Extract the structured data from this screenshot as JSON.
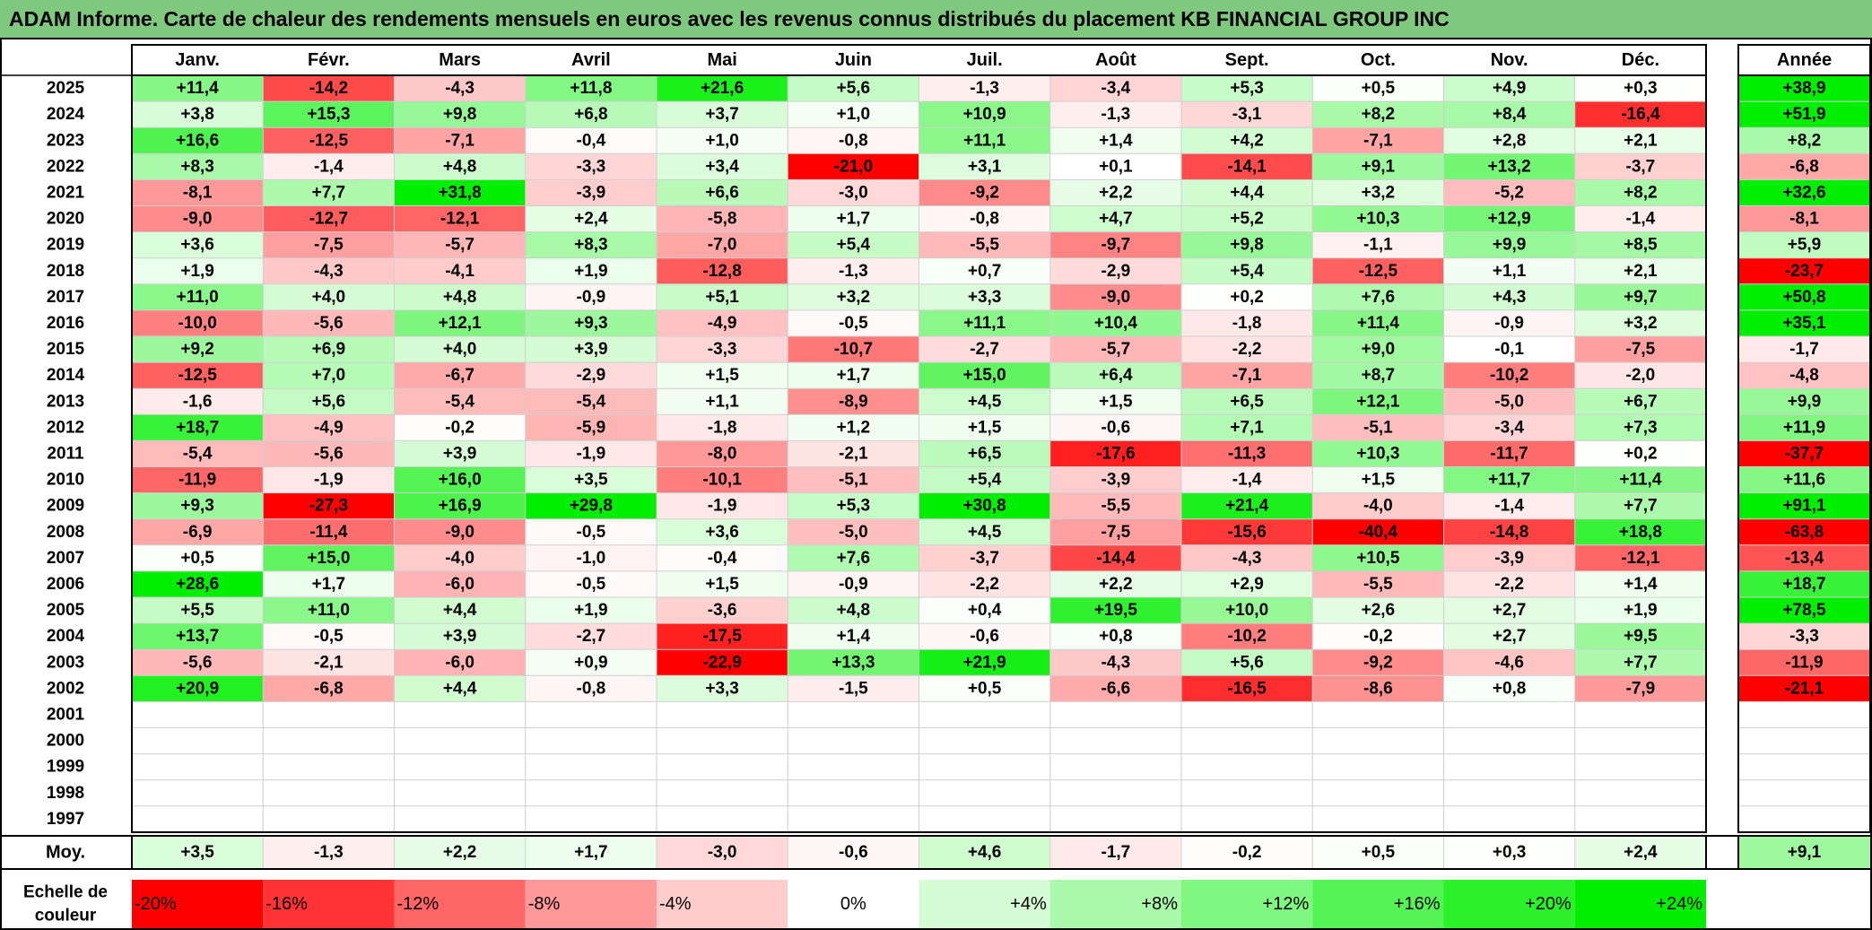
{
  "title": "ADAM Informe. Carte de chaleur des rendements mensuels en euros avec les revenus connus distribués du placement KB FINANCIAL GROUP INC",
  "chart_data": {
    "type": "heatmap",
    "title": "ADAM Informe. Carte de chaleur des rendements mensuels en euros avec les revenus connus distribués du placement KB FINANCIAL GROUP INC",
    "columns": [
      "Janv.",
      "Févr.",
      "Mars",
      "Avril",
      "Mai",
      "Juin",
      "Juil.",
      "Août",
      "Sept.",
      "Oct.",
      "Nov.",
      "Déc."
    ],
    "year_column_label": "Année",
    "rows": [
      {
        "year": "2025",
        "values": [
          "+11,4",
          "-14,2",
          "-4,3",
          "+11,8",
          "+21,6",
          "+5,6",
          "-1,3",
          "-3,4",
          "+5,3",
          "+0,5",
          "+4,9",
          "+0,3"
        ],
        "annual": "+38,9"
      },
      {
        "year": "2024",
        "values": [
          "+3,8",
          "+15,3",
          "+9,8",
          "+6,8",
          "+3,7",
          "+1,0",
          "+10,9",
          "-1,3",
          "-3,1",
          "+8,2",
          "+8,4",
          "-16,4"
        ],
        "annual": "+51,9"
      },
      {
        "year": "2023",
        "values": [
          "+16,6",
          "-12,5",
          "-7,1",
          "-0,4",
          "+1,0",
          "-0,8",
          "+11,1",
          "+1,4",
          "+4,2",
          "-7,1",
          "+2,8",
          "+2,1"
        ],
        "annual": "+8,2"
      },
      {
        "year": "2022",
        "values": [
          "+8,3",
          "-1,4",
          "+4,8",
          "-3,3",
          "+3,4",
          "-21,0",
          "+3,1",
          "+0,1",
          "-14,1",
          "+9,1",
          "+13,2",
          "-3,7"
        ],
        "annual": "-6,8"
      },
      {
        "year": "2021",
        "values": [
          "-8,1",
          "+7,7",
          "+31,8",
          "-3,9",
          "+6,6",
          "-3,0",
          "-9,2",
          "+2,2",
          "+4,4",
          "+3,2",
          "-5,2",
          "+8,2"
        ],
        "annual": "+32,6"
      },
      {
        "year": "2020",
        "values": [
          "-9,0",
          "-12,7",
          "-12,1",
          "+2,4",
          "-5,8",
          "+1,7",
          "-0,8",
          "+4,7",
          "+5,2",
          "+10,3",
          "+12,9",
          "-1,4"
        ],
        "annual": "-8,1"
      },
      {
        "year": "2019",
        "values": [
          "+3,6",
          "-7,5",
          "-5,7",
          "+8,3",
          "-7,0",
          "+5,4",
          "-5,5",
          "-9,7",
          "+9,8",
          "-1,1",
          "+9,9",
          "+8,5"
        ],
        "annual": "+5,9"
      },
      {
        "year": "2018",
        "values": [
          "+1,9",
          "-4,3",
          "-4,1",
          "+1,9",
          "-12,8",
          "-1,3",
          "+0,7",
          "-2,9",
          "+5,4",
          "-12,5",
          "+1,1",
          "+2,1"
        ],
        "annual": "-23,7"
      },
      {
        "year": "2017",
        "values": [
          "+11,0",
          "+4,0",
          "+4,8",
          "-0,9",
          "+5,1",
          "+3,2",
          "+3,3",
          "-9,0",
          "+0,2",
          "+7,6",
          "+4,3",
          "+9,7"
        ],
        "annual": "+50,8"
      },
      {
        "year": "2016",
        "values": [
          "-10,0",
          "-5,6",
          "+12,1",
          "+9,3",
          "-4,9",
          "-0,5",
          "+11,1",
          "+10,4",
          "-1,8",
          "+11,4",
          "-0,9",
          "+3,2"
        ],
        "annual": "+35,1"
      },
      {
        "year": "2015",
        "values": [
          "+9,2",
          "+6,9",
          "+4,0",
          "+3,9",
          "-3,3",
          "-10,7",
          "-2,7",
          "-5,7",
          "-2,2",
          "+9,0",
          "-0,1",
          "-7,5"
        ],
        "annual": "-1,7"
      },
      {
        "year": "2014",
        "values": [
          "-12,5",
          "+7,0",
          "-6,7",
          "-2,9",
          "+1,5",
          "+1,7",
          "+15,0",
          "+6,4",
          "-7,1",
          "+8,7",
          "-10,2",
          "-2,0"
        ],
        "annual": "-4,8"
      },
      {
        "year": "2013",
        "values": [
          "-1,6",
          "+5,6",
          "-5,4",
          "-5,4",
          "+1,1",
          "-8,9",
          "+4,5",
          "+1,5",
          "+6,5",
          "+12,1",
          "-5,0",
          "+6,7"
        ],
        "annual": "+9,9"
      },
      {
        "year": "2012",
        "values": [
          "+18,7",
          "-4,9",
          "-0,2",
          "-5,9",
          "-1,8",
          "+1,2",
          "+1,5",
          "-0,6",
          "+7,1",
          "-5,1",
          "-3,4",
          "+7,3"
        ],
        "annual": "+11,9"
      },
      {
        "year": "2011",
        "values": [
          "-5,4",
          "-5,6",
          "+3,9",
          "-1,9",
          "-8,0",
          "-2,1",
          "+6,5",
          "-17,6",
          "-11,3",
          "+10,3",
          "-11,7",
          "+0,2"
        ],
        "annual": "-37,7"
      },
      {
        "year": "2010",
        "values": [
          "-11,9",
          "-1,9",
          "+16,0",
          "+3,5",
          "-10,1",
          "-5,1",
          "+5,4",
          "-3,9",
          "-1,4",
          "+1,5",
          "+11,7",
          "+11,4"
        ],
        "annual": "+11,6"
      },
      {
        "year": "2009",
        "values": [
          "+9,3",
          "-27,3",
          "+16,9",
          "+29,8",
          "-1,9",
          "+5,3",
          "+30,8",
          "-5,5",
          "+21,4",
          "-4,0",
          "-1,4",
          "+7,7"
        ],
        "annual": "+91,1"
      },
      {
        "year": "2008",
        "values": [
          "-6,9",
          "-11,4",
          "-9,0",
          "-0,5",
          "+3,6",
          "-5,0",
          "+4,5",
          "-7,5",
          "-15,6",
          "-40,4",
          "-14,8",
          "+18,8"
        ],
        "annual": "-63,8"
      },
      {
        "year": "2007",
        "values": [
          "+0,5",
          "+15,0",
          "-4,0",
          "-1,0",
          "-0,4",
          "+7,6",
          "-3,7",
          "-14,4",
          "-4,3",
          "+10,5",
          "-3,9",
          "-12,1"
        ],
        "annual": "-13,4"
      },
      {
        "year": "2006",
        "values": [
          "+28,6",
          "+1,7",
          "-6,0",
          "-0,5",
          "+1,5",
          "-0,9",
          "-2,2",
          "+2,2",
          "+2,9",
          "-5,5",
          "-2,2",
          "+1,4"
        ],
        "annual": "+18,7"
      },
      {
        "year": "2005",
        "values": [
          "+5,5",
          "+11,0",
          "+4,4",
          "+1,9",
          "-3,6",
          "+4,8",
          "+0,4",
          "+19,5",
          "+10,0",
          "+2,6",
          "+2,7",
          "+1,9"
        ],
        "annual": "+78,5"
      },
      {
        "year": "2004",
        "values": [
          "+13,7",
          "-0,5",
          "+3,9",
          "-2,7",
          "-17,5",
          "+1,4",
          "-0,6",
          "+0,8",
          "-10,2",
          "-0,2",
          "+2,7",
          "+9,5"
        ],
        "annual": "-3,3"
      },
      {
        "year": "2003",
        "values": [
          "-5,6",
          "-2,1",
          "-6,0",
          "+0,9",
          "-22,9",
          "+13,3",
          "+21,9",
          "-4,3",
          "+5,6",
          "-9,2",
          "-4,6",
          "+7,7"
        ],
        "annual": "-11,9"
      },
      {
        "year": "2002",
        "values": [
          "+20,9",
          "-6,8",
          "+4,4",
          "-0,8",
          "+3,3",
          "-1,5",
          "+0,5",
          "-6,6",
          "-16,5",
          "-8,6",
          "+0,8",
          "-7,9"
        ],
        "annual": "-21,1"
      },
      {
        "year": "2001",
        "values": [
          "",
          "",
          "",
          "",
          "",
          "",
          "",
          "",
          "",
          "",
          "",
          ""
        ],
        "annual": ""
      },
      {
        "year": "2000",
        "values": [
          "",
          "",
          "",
          "",
          "",
          "",
          "",
          "",
          "",
          "",
          "",
          ""
        ],
        "annual": ""
      },
      {
        "year": "1999",
        "values": [
          "",
          "",
          "",
          "",
          "",
          "",
          "",
          "",
          "",
          "",
          "",
          ""
        ],
        "annual": ""
      },
      {
        "year": "1998",
        "values": [
          "",
          "",
          "",
          "",
          "",
          "",
          "",
          "",
          "",
          "",
          "",
          ""
        ],
        "annual": ""
      },
      {
        "year": "1997",
        "values": [
          "",
          "",
          "",
          "",
          "",
          "",
          "",
          "",
          "",
          "",
          "",
          ""
        ],
        "annual": ""
      }
    ],
    "average": {
      "label": "Moy.",
      "values": [
        "+3,5",
        "-1,3",
        "+2,2",
        "+1,7",
        "-3,0",
        "-0,6",
        "+4,6",
        "-1,7",
        "-0,2",
        "+0,5",
        "+0,3",
        "+2,4"
      ],
      "annual": "+9,1"
    },
    "color_scale": {
      "label": "Echelle de couleur",
      "stops": [
        "-20%",
        "-16%",
        "-12%",
        "-8%",
        "-4%",
        "0%",
        "+4%",
        "+8%",
        "+12%",
        "+16%",
        "+20%",
        "+24%"
      ],
      "negative_color": "#ff0000",
      "neutral_color": "#ffffff",
      "positive_color": "#00ee00",
      "scale_min": -20,
      "scale_max": 24
    }
  }
}
